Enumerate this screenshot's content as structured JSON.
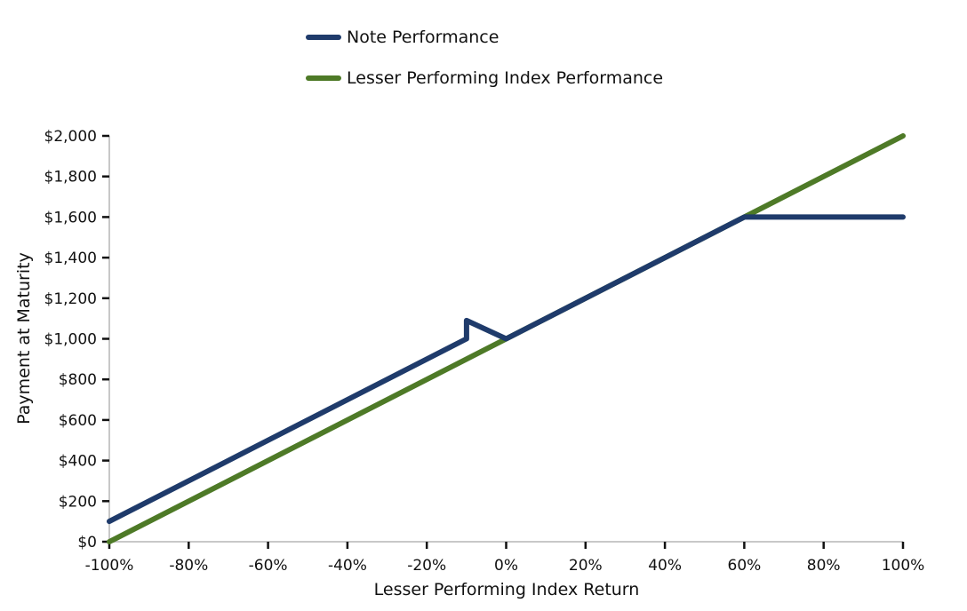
{
  "chart_data": {
    "type": "line",
    "title": "",
    "xlabel": "Lesser Performing Index Return",
    "ylabel": "Payment at Maturity",
    "xlim": [
      -100,
      100
    ],
    "ylim": [
      0,
      2000
    ],
    "x_ticks": [
      -100,
      -80,
      -60,
      -40,
      -20,
      0,
      20,
      40,
      60,
      80,
      100
    ],
    "x_tick_labels": [
      "-100%",
      "-80%",
      "-60%",
      "-40%",
      "-20%",
      "0%",
      "20%",
      "40%",
      "60%",
      "80%",
      "100%"
    ],
    "y_ticks": [
      0,
      200,
      400,
      600,
      800,
      1000,
      1200,
      1400,
      1600,
      1800,
      2000
    ],
    "y_tick_labels": [
      "$0",
      "$200",
      "$400",
      "$600",
      "$800",
      "$1,000",
      "$1,200",
      "$1,400",
      "$1,600",
      "$1,800",
      "$2,000"
    ],
    "grid": false,
    "legend_position": "top",
    "series": [
      {
        "name": "Note Performance",
        "color": "#1f3b6b",
        "x": [
          -100,
          -10,
          -10,
          0,
          60,
          100
        ],
        "y": [
          100,
          1000,
          1090,
          1000,
          1600,
          1600
        ]
      },
      {
        "name": "Lesser Performing Index Performance",
        "color": "#4e7a27",
        "x": [
          -100,
          100
        ],
        "y": [
          0,
          2000
        ]
      }
    ]
  }
}
